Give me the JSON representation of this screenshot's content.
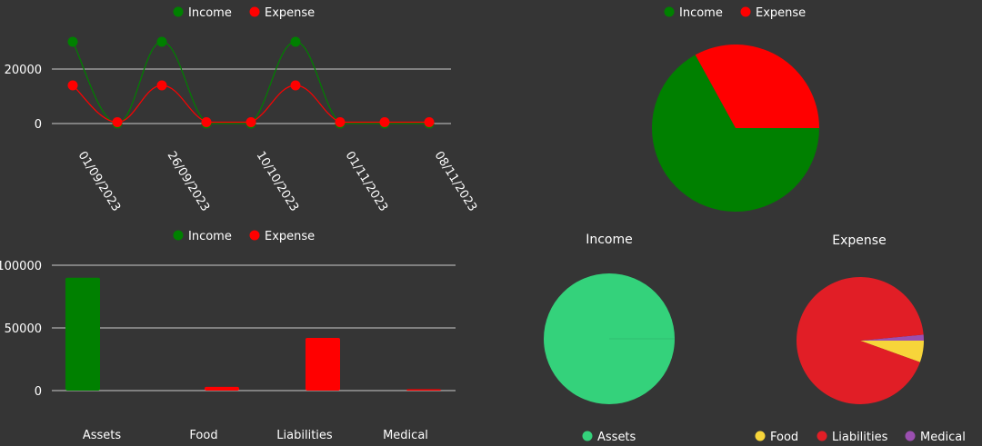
{
  "legend": {
    "income": "Income",
    "expense": "Expense"
  },
  "colors": {
    "income": "#008000",
    "expense": "#ff0000",
    "grid": "#cccccc"
  },
  "chart_data": [
    {
      "type": "line",
      "x": [
        "01/09/2023",
        "",
        "26/09/2023",
        "",
        "10/10/2023",
        "",
        "01/11/2023",
        "",
        "08/11/2023"
      ],
      "xticks": [
        "01/09/2023",
        "26/09/2023",
        "10/10/2023",
        "01/11/2023",
        "08/11/2023"
      ],
      "series": [
        {
          "name": "Income",
          "values": [
            30000,
            0,
            30000,
            0,
            0,
            30000,
            0,
            0,
            0
          ]
        },
        {
          "name": "Expense",
          "values": [
            14000,
            500,
            14000,
            500,
            500,
            14000,
            500,
            500,
            500
          ]
        }
      ],
      "yticks": [
        "20000",
        "0"
      ],
      "legend_position": "top"
    },
    {
      "type": "pie",
      "labels": [
        "Income",
        "Expense"
      ],
      "values": [
        67,
        33
      ],
      "legend_position": "top"
    },
    {
      "type": "bar",
      "categories": [
        "Assets",
        "Food",
        "Liabilities",
        "Medical"
      ],
      "series": [
        {
          "name": "Income",
          "values": [
            90000,
            0,
            0,
            0
          ]
        },
        {
          "name": "Expense",
          "values": [
            0,
            3000,
            42000,
            500
          ]
        }
      ],
      "yticks": [
        "100000",
        "50000",
        "0"
      ],
      "legend_position": "top"
    },
    {
      "type": "pie",
      "title": "Income",
      "labels": [
        "Assets"
      ],
      "values": [
        100
      ],
      "colors": [
        "#34d27b"
      ],
      "legend_position": "bottom"
    },
    {
      "type": "pie",
      "title": "Expense",
      "labels": [
        "Food",
        "Liabilities",
        "Medical"
      ],
      "values": [
        5.5,
        93,
        1.5
      ],
      "colors": [
        "#f7d53a",
        "#e11e26",
        "#9b4fb0"
      ],
      "legend_position": "bottom"
    }
  ]
}
